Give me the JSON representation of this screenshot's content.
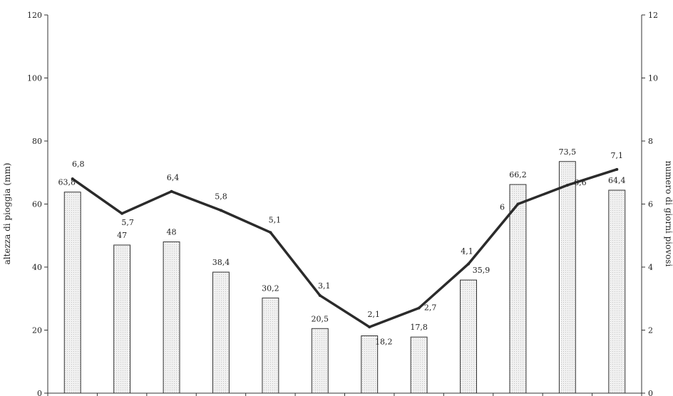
{
  "chart_data": {
    "type": "bar",
    "title": "",
    "xlabel": "",
    "ylabel": "altezza di pioggia (mm)",
    "y2label": "numero di giorni piovosi",
    "ylim": [
      0,
      120
    ],
    "y2lim": [
      0,
      12
    ],
    "yticks": [
      "0",
      "20",
      "40",
      "60",
      "80",
      "100",
      "120"
    ],
    "y2ticks": [
      "0",
      "2",
      "4",
      "6",
      "8",
      "10",
      "12"
    ],
    "grid": false,
    "legend": "none",
    "series": [
      {
        "kind": "bar",
        "axis": "left",
        "values": [
          63.8,
          47,
          48,
          38.4,
          30.2,
          20.5,
          18.2,
          17.8,
          35.9,
          66.2,
          73.5,
          64.4
        ],
        "labels": [
          "63,8",
          "47",
          "48",
          "38,4",
          "30,2",
          "20,5",
          "18,2",
          "17,8",
          "35,9",
          "66,2",
          "73,5",
          "64,4"
        ]
      },
      {
        "kind": "line",
        "axis": "right",
        "values": [
          6.8,
          5.7,
          6.4,
          5.8,
          5.1,
          3.1,
          2.1,
          2.7,
          4.1,
          6.0,
          6.6,
          7.1
        ],
        "labels": [
          "6,8",
          "5,7",
          "6,4",
          "5,8",
          "5,1",
          "3,1",
          "2,1",
          "2,7",
          "4,1",
          "6",
          "6,6",
          "7,1"
        ]
      }
    ],
    "colors": {
      "bar_fill": "#ececec",
      "bar_stroke": "#333333",
      "line": "#2b2b2b",
      "axis": "#333333"
    }
  }
}
